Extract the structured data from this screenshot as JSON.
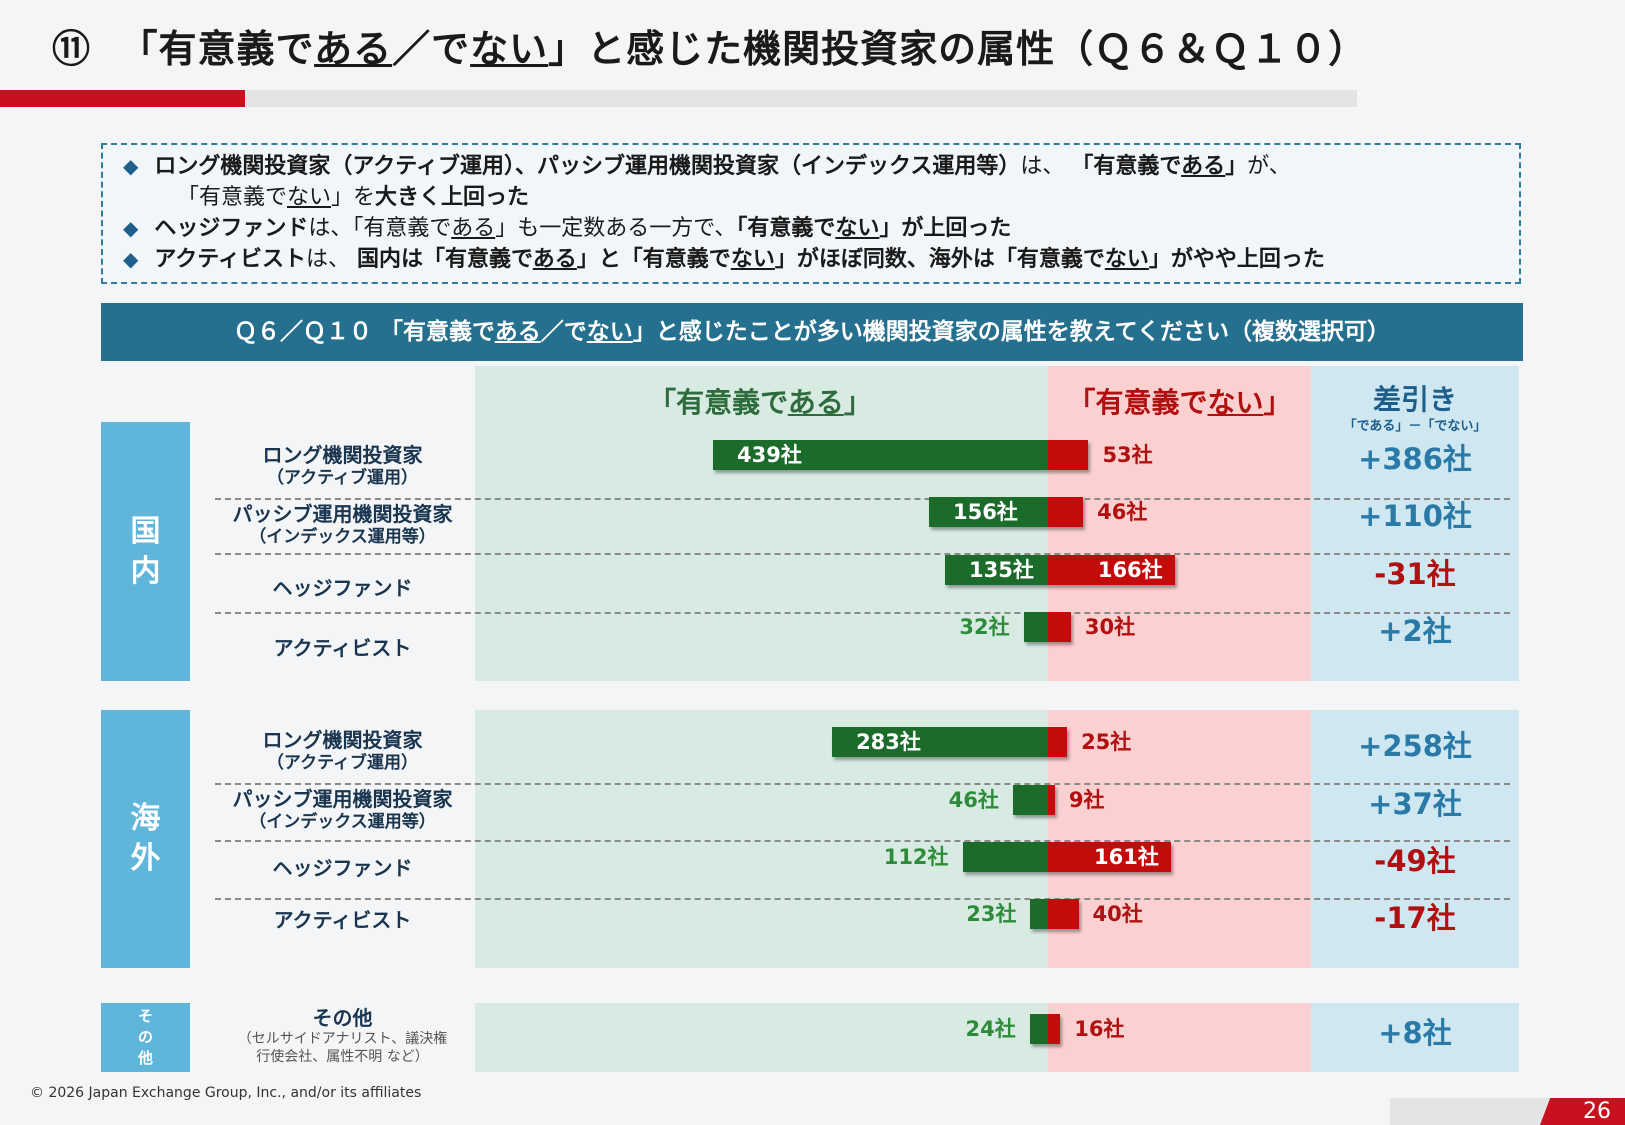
{
  "title": {
    "num": "⑪",
    "p1": "「有意義で",
    "p2": "ある",
    "p3": "／で",
    "p4": "ない",
    "p5": "」と感じた機関投資家の属性（Ｑ６＆Ｑ１０）"
  },
  "summary": {
    "line1": {
      "a": "ロング機関投資家（アクティブ運用）、パッシブ運用機関投資家（インデックス運用等）",
      "b": "は、",
      "c": "「有意義で",
      "d": "ある",
      "e": "」",
      "f": "が、"
    },
    "line2": {
      "a": "「有意義で",
      "b": "ない",
      "c": "」を",
      "d": "大きく上回った"
    },
    "line3": {
      "a": "ヘッジファンド",
      "b": "は、「有意義で",
      "c": "ある",
      "d": "」も一定数ある一方で、",
      "e": "「有意義で",
      "f": "ない",
      "g": "」が上回った"
    },
    "line4": {
      "a": "アクティビスト",
      "b": "は、",
      "c": "国内は「有意義で",
      "d": "ある",
      "e": "」と「有意義で",
      "f": "ない",
      "g": "」がほぼ同数、海外は「有意義で",
      "h": "ない",
      "i": "」がやや上回った"
    }
  },
  "question": {
    "a": "Ｑ６／Ｑ１０ 「有意義で",
    "b": "ある",
    "c": "／で",
    "d": "ない",
    "e": "」と感じたことが多い機関投資家の属性を教えてください（複数選択可）"
  },
  "headers": {
    "yes_a": "「有意義で",
    "yes_b": "ある",
    "yes_c": "」",
    "no_a": "「有意義で",
    "no_b": "ない",
    "no_c": "」",
    "diff": "差引き",
    "diff_sub": "「である」－「でない」"
  },
  "groups": {
    "domestic": {
      "c1": "国",
      "c2": "内"
    },
    "overseas": {
      "c1": "海",
      "c2": "外"
    },
    "other": {
      "c1": "そ",
      "c2": "の",
      "c3": "他"
    }
  },
  "row_labels": {
    "long": {
      "l1": "ロング機関投資家",
      "l2": "（アクティブ運用）"
    },
    "passive": {
      "l1": "パッシブ運用機関投資家",
      "l2": "（インデックス運用等）"
    },
    "hedge": {
      "l1": "ヘッジファンド"
    },
    "activist": {
      "l1": "アクティビスト"
    },
    "other": {
      "l1": "その他",
      "l2": "（セルサイドアナリスト、議決権",
      "l3": "行使会社、属性不明 など）"
    }
  },
  "chart_data": {
    "type": "bar",
    "orientation": "diverging-horizontal",
    "unit": "社",
    "series_names": [
      "「有意義である」",
      "「有意義でない」"
    ],
    "rows": [
      {
        "group": "国内",
        "category": "ロング機関投資家（アクティブ運用）",
        "yes": 439,
        "no": 53,
        "diff": "+386社"
      },
      {
        "group": "国内",
        "category": "パッシブ運用機関投資家（インデックス運用等）",
        "yes": 156,
        "no": 46,
        "diff": "+110社"
      },
      {
        "group": "国内",
        "category": "ヘッジファンド",
        "yes": 135,
        "no": 166,
        "diff": "-31社"
      },
      {
        "group": "国内",
        "category": "アクティビスト",
        "yes": 32,
        "no": 30,
        "diff": "+2社"
      },
      {
        "group": "海外",
        "category": "ロング機関投資家（アクティブ運用）",
        "yes": 283,
        "no": 25,
        "diff": "+258社"
      },
      {
        "group": "海外",
        "category": "パッシブ運用機関投資家（インデックス運用等）",
        "yes": 46,
        "no": 9,
        "diff": "+37社"
      },
      {
        "group": "海外",
        "category": "ヘッジファンド",
        "yes": 112,
        "no": 161,
        "diff": "-49社"
      },
      {
        "group": "海外",
        "category": "アクティビスト",
        "yes": 23,
        "no": 40,
        "diff": "-17社"
      },
      {
        "group": "その他",
        "category": "その他",
        "yes": 24,
        "no": 16,
        "diff": "+8社"
      }
    ],
    "colors": {
      "yes": "#1b6b2a",
      "no": "#c40b0b",
      "pos_diff": "#2a7aa8",
      "neg_diff": "#b01010"
    }
  },
  "footer": "© 2026 Japan Exchange Group, Inc., and/or its affiliates",
  "page_number": "26"
}
